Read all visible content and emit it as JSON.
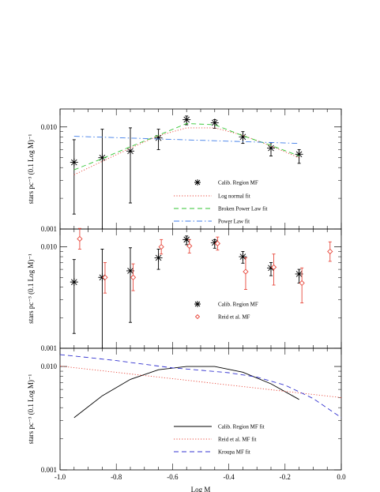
{
  "chart_data": [
    {
      "type": "scatter",
      "panel": "top",
      "ylabel": "stars pc⁻³ (0.1 Log M)⁻¹",
      "xlim": [
        -1.0,
        0.0
      ],
      "ylim": [
        0.001,
        0.015
      ],
      "yscale": "log",
      "ytick_labels": [
        "0.010",
        "0.001"
      ],
      "series": [
        {
          "name": "Calib. Region MF",
          "style": "points-asterisk",
          "color": "#000000",
          "x": [
            -0.95,
            -0.85,
            -0.75,
            -0.65,
            -0.55,
            -0.45,
            -0.35,
            -0.25,
            -0.15
          ],
          "y": [
            0.0045,
            0.005,
            0.0058,
            0.0078,
            0.0118,
            0.011,
            0.008,
            0.0062,
            0.0054
          ],
          "yerr_low": [
            0.0014,
            0.001,
            0.0018,
            0.006,
            0.0105,
            0.0097,
            0.0069,
            0.0052,
            0.0044
          ],
          "yerr_high": [
            0.0075,
            0.0095,
            0.0098,
            0.0095,
            0.0128,
            0.0118,
            0.009,
            0.007,
            0.006
          ]
        },
        {
          "name": "Log normal fit",
          "style": "dotted",
          "color": "#e8483c",
          "x": [
            -0.95,
            -0.85,
            -0.75,
            -0.65,
            -0.55,
            -0.45,
            -0.35,
            -0.25,
            -0.15
          ],
          "y": [
            0.0034,
            0.0046,
            0.0062,
            0.0082,
            0.0098,
            0.0098,
            0.0083,
            0.0065,
            0.005
          ]
        },
        {
          "name": "Broken Power Law fit",
          "style": "dashed",
          "color": "#33c633",
          "x": [
            -0.95,
            -0.85,
            -0.75,
            -0.65,
            -0.55,
            -0.45,
            -0.35,
            -0.25,
            -0.15
          ],
          "y": [
            0.0038,
            0.0049,
            0.0064,
            0.0083,
            0.0108,
            0.0105,
            0.0082,
            0.0066,
            0.0052
          ]
        },
        {
          "name": "Power Law fit",
          "style": "dash-dot",
          "color": "#3c7be8",
          "x": [
            -0.95,
            -0.15
          ],
          "y": [
            0.0081,
            0.0069
          ]
        }
      ]
    },
    {
      "type": "scatter",
      "panel": "middle",
      "ylabel": "stars pc⁻³ (0.1 Log M)⁻¹",
      "xlim": [
        -1.0,
        0.0
      ],
      "ylim": [
        0.001,
        0.015
      ],
      "yscale": "log",
      "ytick_labels": [
        "0.010",
        "0.001"
      ],
      "series": [
        {
          "name": "Calib. Region MF",
          "style": "points-asterisk",
          "color": "#000000",
          "x": [
            -0.95,
            -0.85,
            -0.75,
            -0.65,
            -0.55,
            -0.45,
            -0.35,
            -0.25,
            -0.15
          ],
          "y": [
            0.0045,
            0.005,
            0.0058,
            0.0078,
            0.0118,
            0.011,
            0.008,
            0.0062,
            0.0054
          ],
          "yerr_low": [
            0.0014,
            0.001,
            0.0018,
            0.006,
            0.0105,
            0.0097,
            0.0069,
            0.0052,
            0.0044
          ],
          "yerr_high": [
            0.0075,
            0.0095,
            0.0098,
            0.0095,
            0.0128,
            0.0118,
            0.009,
            0.007,
            0.006
          ]
        },
        {
          "name": "Reid et al. MF",
          "style": "points-diamond",
          "color": "#e8483c",
          "x": [
            -0.93,
            -0.84,
            -0.74,
            -0.64,
            -0.54,
            -0.44,
            -0.34,
            -0.24,
            -0.14,
            -0.04
          ],
          "y": [
            0.012,
            0.005,
            0.005,
            0.01,
            0.0102,
            0.0108,
            0.0057,
            0.0063,
            0.0044,
            0.009
          ],
          "yerr_low": [
            0.0095,
            0.0035,
            0.0037,
            0.0085,
            0.0087,
            0.0093,
            0.0038,
            0.0042,
            0.0028,
            0.0072
          ],
          "yerr_high": [
            0.0152,
            0.007,
            0.0068,
            0.0118,
            0.0118,
            0.0125,
            0.0078,
            0.0085,
            0.0062,
            0.0112
          ]
        }
      ]
    },
    {
      "type": "line",
      "panel": "bottom",
      "ylabel": "stars pc⁻³ (0.1 Log M)⁻¹",
      "xlabel": "Log M",
      "xlim": [
        -1.0,
        0.0
      ],
      "ylim": [
        0.001,
        0.015
      ],
      "yscale": "log",
      "ytick_labels": [
        "0.010",
        "0.001"
      ],
      "xtick_labels": [
        "-1.0",
        "-0.8",
        "-0.6",
        "-0.4",
        "-0.2",
        "0.0"
      ],
      "series": [
        {
          "name": "Calib. Region MF fit",
          "style": "solid",
          "color": "#000000",
          "x": [
            -0.95,
            -0.85,
            -0.75,
            -0.65,
            -0.55,
            -0.45,
            -0.35,
            -0.25,
            -0.15
          ],
          "y": [
            0.0032,
            0.0052,
            0.0075,
            0.0093,
            0.01,
            0.01,
            0.0088,
            0.0068,
            0.0048
          ]
        },
        {
          "name": "Reid et al. MF fit",
          "style": "dotted",
          "color": "#e8483c",
          "x": [
            -1.0,
            0.0
          ],
          "y": [
            0.0101,
            0.005
          ]
        },
        {
          "name": "Kroupa MF fit",
          "style": "dashed",
          "color": "#3434d0",
          "x": [
            -1.0,
            -0.9,
            -0.8,
            -0.7,
            -0.6,
            -0.5,
            -0.4,
            -0.3,
            -0.2,
            -0.1,
            0.0
          ],
          "y": [
            0.013,
            0.0122,
            0.0114,
            0.0105,
            0.0097,
            0.0092,
            0.0087,
            0.0079,
            0.0066,
            0.0049,
            0.0032
          ]
        }
      ]
    }
  ]
}
